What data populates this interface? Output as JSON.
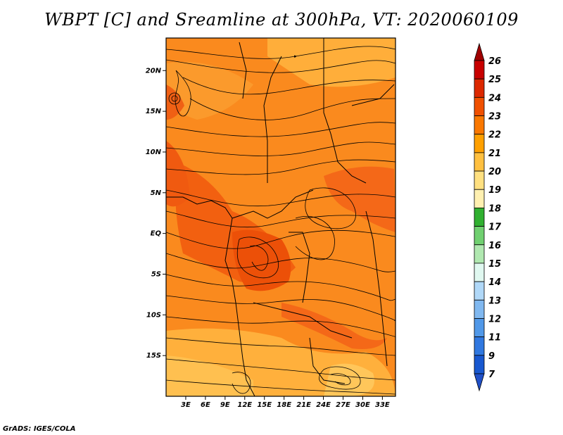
{
  "title": "WBPT [C] and Sreamline at 300hPa, VT: 2020060109",
  "credit": "GrADS: IGES/COLA",
  "map": {
    "lon_range": [
      0,
      35
    ],
    "lat_range": [
      -20,
      24
    ],
    "lon_ticks": [
      "3E",
      "6E",
      "9E",
      "12E",
      "15E",
      "18E",
      "21E",
      "24E",
      "27E",
      "30E",
      "33E"
    ],
    "lat_ticks": [
      "20N",
      "15N",
      "10N",
      "5N",
      "EQ",
      "5S",
      "10S",
      "15S"
    ]
  },
  "colorbar": {
    "levels": [
      "26",
      "25",
      "24",
      "23",
      "22",
      "21",
      "20",
      "19",
      "18",
      "17",
      "16",
      "15",
      "14",
      "13",
      "12",
      "11",
      "9",
      "7"
    ],
    "colors": [
      "#a00000",
      "#c80000",
      "#dc2800",
      "#f05000",
      "#fa7800",
      "#ffa000",
      "#ffc040",
      "#ffe080",
      "#fff0b0",
      "#30b030",
      "#70d070",
      "#b0e8b0",
      "#e0f8f0",
      "#b0d8f8",
      "#80b8f0",
      "#5098e8",
      "#3078e0",
      "#1858d0",
      "#2050c8"
    ]
  }
}
